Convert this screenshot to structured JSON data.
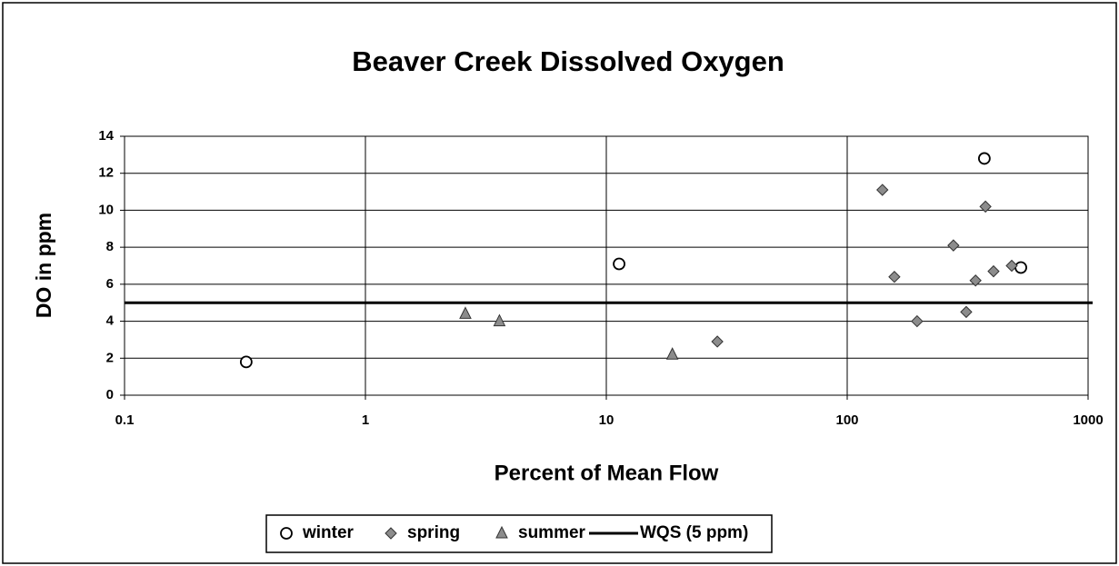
{
  "chart_data": {
    "type": "scatter",
    "title": "Beaver Creek Dissolved Oxygen",
    "x_label": "Percent of Mean Flow",
    "y_label": "DO in ppm",
    "x_log": true,
    "grid": true,
    "legend": "bottom",
    "xlim": [
      0.1,
      1000
    ],
    "xticks": [
      0.1,
      1,
      10,
      100,
      1000
    ],
    "ylim": [
      0,
      14
    ],
    "yticks": [
      0,
      2,
      4,
      6,
      8,
      10,
      12,
      14
    ],
    "series": [
      {
        "name": "winter",
        "marker": "circle",
        "color": "#ffffff",
        "x": [
          0.32,
          11.3,
          371,
          526
        ],
        "values": [
          1.8,
          7.1,
          12.8,
          6.9
        ]
      },
      {
        "name": "spring",
        "marker": "diamond",
        "color": "#8c8c8c",
        "x": [
          140,
          157,
          195,
          276,
          312,
          341,
          375,
          405,
          482,
          28.9
        ],
        "values": [
          11.1,
          6.4,
          4.0,
          8.1,
          4.5,
          6.2,
          10.2,
          6.7,
          7.0,
          2.9
        ]
      },
      {
        "name": "summer",
        "marker": "triangle",
        "color": "#8c8c8c",
        "x": [
          2.6,
          3.6,
          18.8
        ],
        "values": [
          4.4,
          4.0,
          2.2
        ]
      }
    ],
    "reference_line": {
      "name": "WQS (5 ppm)",
      "value": 5,
      "color": "#000000"
    }
  }
}
